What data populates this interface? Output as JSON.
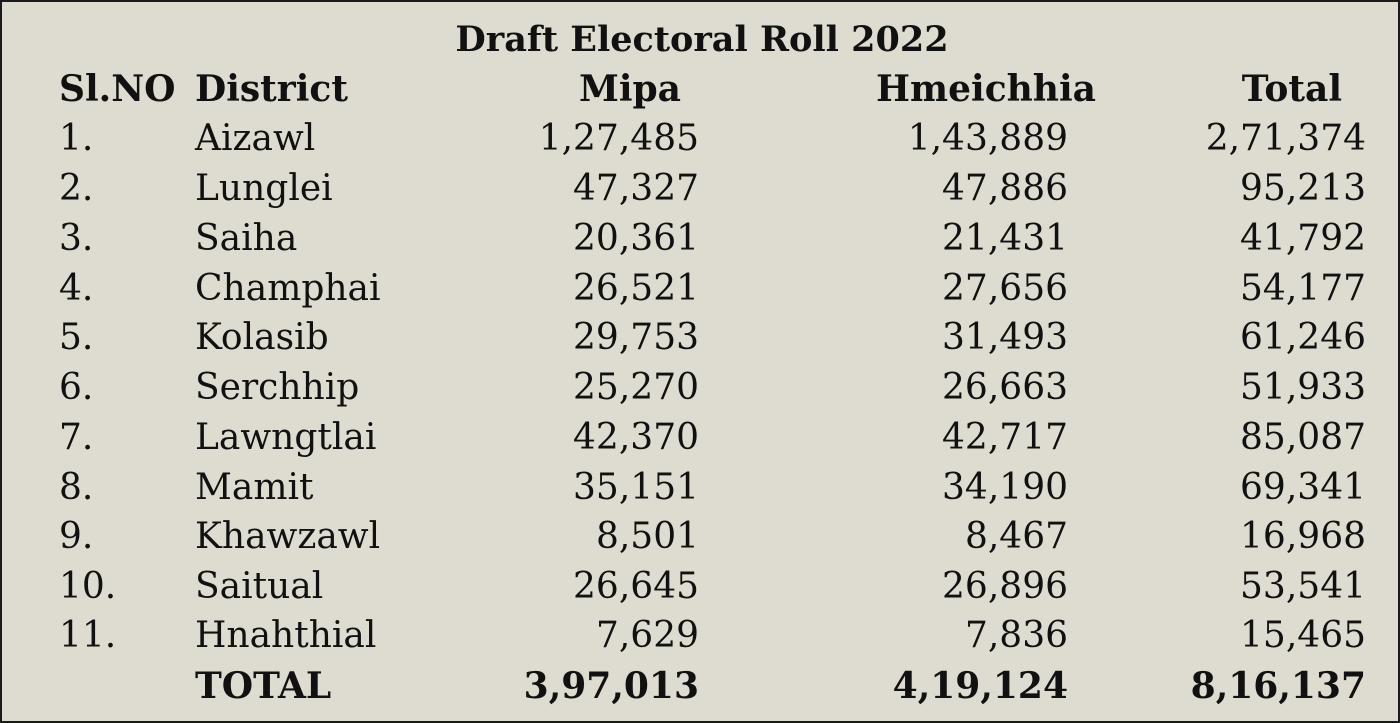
{
  "title": "Draft Electoral Roll 2022",
  "headers": {
    "sl_no": "Sl.NO",
    "district": "District",
    "mipa": "Mipa",
    "hmeichhia": "Hmeichhia",
    "total": "Total"
  },
  "rows": [
    {
      "sl": "1.",
      "district": "Aizawl",
      "mipa": "1,27,485",
      "hmeichhia": "1,43,889",
      "total": "2,71,374"
    },
    {
      "sl": "2.",
      "district": "Lunglei",
      "mipa": "47,327",
      "hmeichhia": "47,886",
      "total": "95,213"
    },
    {
      "sl": "3.",
      "district": "Saiha",
      "mipa": "20,361",
      "hmeichhia": "21,431",
      "total": "41,792"
    },
    {
      "sl": "4.",
      "district": "Champhai",
      "mipa": "26,521",
      "hmeichhia": "27,656",
      "total": "54,177"
    },
    {
      "sl": "5.",
      "district": "Kolasib",
      "mipa": "29,753",
      "hmeichhia": "31,493",
      "total": "61,246"
    },
    {
      "sl": "6.",
      "district": "Serchhip",
      "mipa": "25,270",
      "hmeichhia": "26,663",
      "total": "51,933"
    },
    {
      "sl": "7.",
      "district": "Lawngtlai",
      "mipa": "42,370",
      "hmeichhia": "42,717",
      "total": "85,087"
    },
    {
      "sl": "8.",
      "district": "Mamit",
      "mipa": "35,151",
      "hmeichhia": "34,190",
      "total": "69,341"
    },
    {
      "sl": "9.",
      "district": "Khawzawl",
      "mipa": "8,501",
      "hmeichhia": "8,467",
      "total": "16,968"
    },
    {
      "sl": "10.",
      "district": "Saitual",
      "mipa": "26,645",
      "hmeichhia": "26,896",
      "total": "53,541"
    },
    {
      "sl": "11.",
      "district": "Hnahthial",
      "mipa": "7,629",
      "hmeichhia": "7,836",
      "total": "15,465"
    }
  ],
  "totals": {
    "label": "TOTAL",
    "mipa": "3,97,013",
    "hmeichhia": "4,19,124",
    "total": "8,16,137"
  },
  "colors": {
    "background": "#dedcd0",
    "text": "#111111",
    "border": "#1a1a1a"
  }
}
